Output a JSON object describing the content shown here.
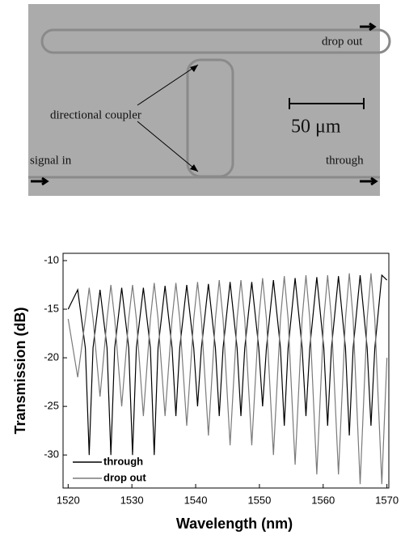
{
  "micrograph": {
    "labels": {
      "drop_out": "drop out",
      "directional_coupler": "directional coupler",
      "scale_bar": "50 μm",
      "signal_in": "signal in",
      "through": "through"
    }
  },
  "chart_data": {
    "type": "line",
    "xlabel": "Wavelength (nm)",
    "ylabel": "Transmission (dB)",
    "xlim": [
      1519.2,
      1570.3
    ],
    "ylim": [
      -33.4,
      -9.25
    ],
    "xticks": [
      1520,
      1530,
      1540,
      1550,
      1560,
      1570
    ],
    "yticks": [
      -30,
      -25,
      -20,
      -15,
      -10
    ],
    "legend": "lower left",
    "x": [
      1520,
      1521.5,
      1522.7,
      1523.3,
      1523.9,
      1525.0,
      1526.1,
      1526.7,
      1527.3,
      1528.4,
      1529.5,
      1530.1,
      1530.7,
      1531.8,
      1532.9,
      1533.5,
      1534.1,
      1535.2,
      1536.3,
      1536.9,
      1537.5,
      1538.6,
      1539.7,
      1540.3,
      1540.9,
      1542.0,
      1543.1,
      1543.7,
      1544.3,
      1545.4,
      1546.5,
      1547.1,
      1547.7,
      1548.8,
      1549.9,
      1550.5,
      1551.1,
      1552.2,
      1553.3,
      1553.9,
      1554.5,
      1555.6,
      1556.7,
      1557.3,
      1557.9,
      1559.0,
      1560.1,
      1560.7,
      1561.3,
      1562.4,
      1563.5,
      1564.1,
      1564.7,
      1565.8,
      1566.9,
      1567.5,
      1568.1,
      1569.2,
      1570
    ],
    "series": [
      {
        "name": "through",
        "color": "#000000",
        "values": [
          -15,
          -13,
          -19,
          -30,
          -19,
          -13,
          -19,
          -30,
          -19,
          -12.8,
          -19,
          -30,
          -19,
          -12.8,
          -19,
          -30,
          -19,
          -12.6,
          -19,
          -26,
          -19,
          -12.5,
          -19,
          -25,
          -19,
          -12.4,
          -19,
          -26,
          -19,
          -12.2,
          -19,
          -26,
          -19,
          -12.2,
          -19,
          -25,
          -19,
          -12,
          -19,
          -27,
          -19,
          -11.8,
          -19,
          -26,
          -19,
          -11.7,
          -19,
          -27,
          -19,
          -11.6,
          -19,
          -28,
          -19,
          -11.5,
          -19,
          -27,
          -19,
          -11.5,
          -12
        ]
      },
      {
        "name": "drop out",
        "color": "#7a7a7a",
        "values": [
          -16,
          -22,
          -16,
          -12.8,
          -16,
          -24,
          -16,
          -12.5,
          -16,
          -25,
          -16,
          -12.5,
          -16,
          -26,
          -16,
          -12.3,
          -16,
          -26,
          -16,
          -12.3,
          -16,
          -27,
          -16,
          -12.2,
          -16,
          -28,
          -16,
          -12,
          -16,
          -29,
          -16,
          -12,
          -16,
          -29,
          -16,
          -11.8,
          -16,
          -30,
          -16,
          -11.6,
          -16,
          -31,
          -16,
          -11.5,
          -16,
          -32,
          -16,
          -11.5,
          -16,
          -32,
          -16,
          -11.3,
          -16,
          -33,
          -16,
          -11.3,
          -16,
          -33,
          -20
        ]
      }
    ]
  }
}
